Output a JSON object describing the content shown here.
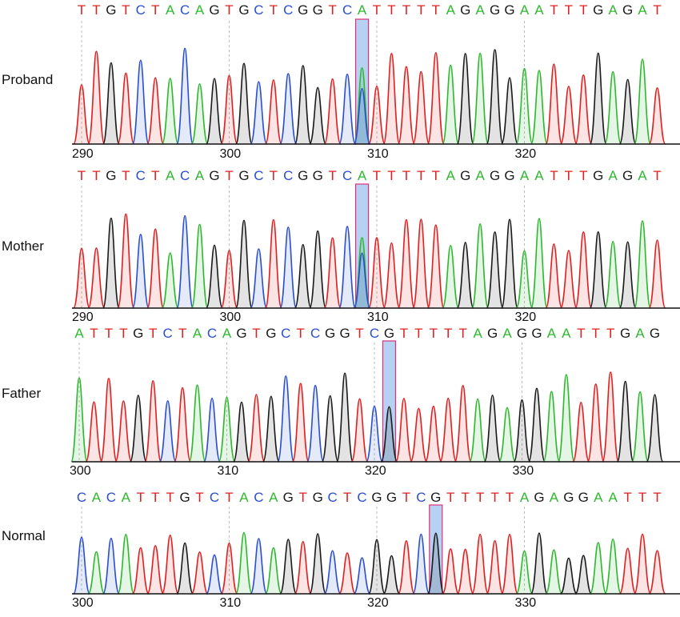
{
  "colors": {
    "A": "#2eb82e",
    "C": "#2a4fcf",
    "G": "#1a1a1a",
    "T": "#e02020",
    "highlight": "#a9c9ee",
    "highlight_border": "#e0307a",
    "baseline": "#111111",
    "grid": "#bbbbbb"
  },
  "tracks": [
    {
      "label": "Proband",
      "sequence": "TTGTCTACAGTGCTCGGTCATTTTTAGAGGAATTTGAGAT",
      "start_pos": 290,
      "highlight_index": 19,
      "ticks": [
        "290",
        "300",
        "310",
        "320"
      ],
      "secondary_peak": {
        "index": 19,
        "base": "C"
      }
    },
    {
      "label": "Mother",
      "sequence": "TTGTCTACAGTGCTCGGTCATTTTTAGAGGAATTTGAGAT",
      "start_pos": 290,
      "highlight_index": 19,
      "ticks": [
        "290",
        "300",
        "310",
        "320"
      ],
      "secondary_peak": {
        "index": 19,
        "base": "C"
      }
    },
    {
      "label": "Father",
      "sequence": "ATTTGTCTACAGTGCTCGGTCGTTTTTAGAGGAATTTGAG",
      "start_pos": 300,
      "highlight_index": 21,
      "ticks": [
        "300",
        "310",
        "320",
        "330"
      ]
    },
    {
      "label": "Normal",
      "sequence": "CACATTTGTCTACAGTGCTCGGTCGTTTTTAGAGGAATTT",
      "start_pos": 300,
      "highlight_index": 24,
      "ticks": [
        "300",
        "310",
        "320",
        "330"
      ]
    }
  ]
}
